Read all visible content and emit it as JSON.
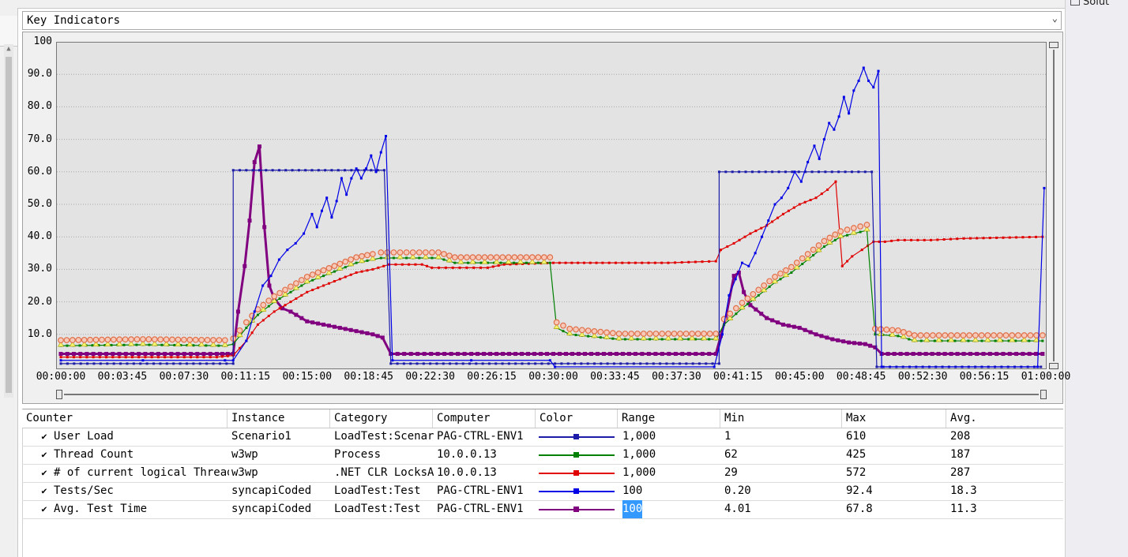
{
  "solution_explorer_label": "Solut",
  "panel_dropdown": {
    "selected": "Key Indicators",
    "arrow": "⌄"
  },
  "chart_data": {
    "type": "line",
    "title": "",
    "xlabel": "",
    "ylabel": "",
    "ylim": [
      0,
      100
    ],
    "xlim": [
      "00:00:00",
      "01:00:00"
    ],
    "grid": true,
    "y_ticks": [
      "100",
      "90.0",
      "80.0",
      "70.0",
      "60.0",
      "50.0",
      "40.0",
      "30.0",
      "20.0",
      "10.0"
    ],
    "x_ticks": [
      "00:00:00",
      "00:03:45",
      "00:07:30",
      "00:11:15",
      "00:15:00",
      "00:18:45",
      "00:22:30",
      "00:26:15",
      "00:30:00",
      "00:33:45",
      "00:37:30",
      "00:41:15",
      "00:45:00",
      "00:48:45",
      "00:52:30",
      "00:56:15",
      "01:00:00"
    ],
    "series": [
      {
        "name": "User Load",
        "color": "#1c1ca8",
        "points": [
          [
            0,
            1
          ],
          [
            10.5,
            1
          ],
          [
            10.5,
            60.5
          ],
          [
            19.7,
            60.5
          ],
          [
            20.1,
            1
          ],
          [
            40.1,
            1
          ],
          [
            40.1,
            60
          ],
          [
            49.4,
            60
          ],
          [
            49.7,
            0
          ],
          [
            59.7,
            0
          ]
        ]
      },
      {
        "name": "Thread Count",
        "color": "#008000",
        "points": [
          [
            0,
            6.5
          ],
          [
            5,
            6.8
          ],
          [
            10,
            6.5
          ],
          [
            10.5,
            7
          ],
          [
            11.3,
            12
          ],
          [
            12,
            16
          ],
          [
            13,
            20
          ],
          [
            14,
            23
          ],
          [
            15,
            26
          ],
          [
            16,
            28
          ],
          [
            17,
            30
          ],
          [
            18,
            32
          ],
          [
            19,
            33
          ],
          [
            19.5,
            33.5
          ],
          [
            23,
            33.5
          ],
          [
            24,
            32
          ],
          [
            28,
            32
          ],
          [
            29.8,
            32
          ],
          [
            30.2,
            12
          ],
          [
            31,
            10
          ],
          [
            34,
            8.5
          ],
          [
            37,
            8.5
          ],
          [
            39.9,
            8.5
          ],
          [
            40.4,
            13
          ],
          [
            41.5,
            18
          ],
          [
            42.5,
            22
          ],
          [
            43.5,
            26
          ],
          [
            44.5,
            29
          ],
          [
            45.5,
            33
          ],
          [
            46.5,
            37
          ],
          [
            47.5,
            40
          ],
          [
            49.1,
            42
          ],
          [
            49.6,
            10
          ],
          [
            51,
            9.5
          ],
          [
            52,
            8
          ],
          [
            59.8,
            8
          ]
        ]
      },
      {
        "name": "# of current logical Threads",
        "color": "#e00000",
        "points": [
          [
            0,
            3
          ],
          [
            9.5,
            3
          ],
          [
            10.5,
            3.5
          ],
          [
            11.3,
            8
          ],
          [
            12,
            13
          ],
          [
            13,
            17
          ],
          [
            14,
            20
          ],
          [
            15,
            23
          ],
          [
            16,
            25
          ],
          [
            17,
            27
          ],
          [
            18,
            29
          ],
          [
            19,
            30
          ],
          [
            20,
            31.5
          ],
          [
            22,
            31.5
          ],
          [
            22.6,
            30.5
          ],
          [
            26,
            30.5
          ],
          [
            27,
            31.5
          ],
          [
            30,
            32
          ],
          [
            33,
            32
          ],
          [
            37,
            32
          ],
          [
            39.9,
            32.5
          ],
          [
            40.2,
            36
          ],
          [
            41,
            38
          ],
          [
            42,
            41
          ],
          [
            43,
            43.5
          ],
          [
            44,
            47
          ],
          [
            45,
            50
          ],
          [
            46,
            52
          ],
          [
            46.7,
            54.5
          ],
          [
            47.2,
            57
          ],
          [
            47.6,
            31
          ],
          [
            48.2,
            34
          ],
          [
            48.8,
            36
          ],
          [
            49.5,
            38.5
          ],
          [
            50.2,
            38.5
          ],
          [
            51,
            39
          ],
          [
            53,
            39
          ],
          [
            55,
            39.5
          ],
          [
            59.8,
            40
          ]
        ]
      },
      {
        "name": "Tests/Sec",
        "color": "#0000e6",
        "points": [
          [
            0,
            2
          ],
          [
            5,
            2
          ],
          [
            10,
            2
          ],
          [
            10.5,
            2
          ],
          [
            11.3,
            8
          ],
          [
            11.8,
            17
          ],
          [
            12.3,
            25
          ],
          [
            12.8,
            28
          ],
          [
            13.3,
            33
          ],
          [
            13.8,
            36
          ],
          [
            14.3,
            38
          ],
          [
            14.8,
            41
          ],
          [
            15.3,
            47
          ],
          [
            15.6,
            43
          ],
          [
            15.9,
            48
          ],
          [
            16.2,
            52
          ],
          [
            16.5,
            46
          ],
          [
            16.8,
            51
          ],
          [
            17.1,
            58
          ],
          [
            17.4,
            53
          ],
          [
            17.7,
            58
          ],
          [
            18.0,
            61
          ],
          [
            18.3,
            58
          ],
          [
            18.6,
            61
          ],
          [
            18.9,
            65
          ],
          [
            19.2,
            60
          ],
          [
            19.5,
            66
          ],
          [
            19.8,
            71
          ],
          [
            20.2,
            2
          ],
          [
            25,
            2
          ],
          [
            29.8,
            2
          ],
          [
            30.1,
            0
          ],
          [
            39.8,
            0
          ],
          [
            40.3,
            10
          ],
          [
            40.7,
            22
          ],
          [
            41.1,
            27
          ],
          [
            41.5,
            32
          ],
          [
            41.9,
            31
          ],
          [
            42.3,
            35
          ],
          [
            42.7,
            40
          ],
          [
            43.1,
            45
          ],
          [
            43.5,
            50
          ],
          [
            43.9,
            52
          ],
          [
            44.3,
            55
          ],
          [
            44.7,
            60
          ],
          [
            45.1,
            57
          ],
          [
            45.5,
            63
          ],
          [
            45.9,
            68
          ],
          [
            46.2,
            64
          ],
          [
            46.5,
            70
          ],
          [
            46.8,
            75
          ],
          [
            47.1,
            73
          ],
          [
            47.4,
            77
          ],
          [
            47.7,
            83
          ],
          [
            48.0,
            78
          ],
          [
            48.3,
            85
          ],
          [
            48.6,
            88
          ],
          [
            48.9,
            92
          ],
          [
            49.2,
            88
          ],
          [
            49.5,
            86
          ],
          [
            49.8,
            91
          ],
          [
            50.0,
            0
          ],
          [
            59.5,
            0
          ],
          [
            59.9,
            55
          ]
        ]
      },
      {
        "name": "Avg. Test Time",
        "color": "#800080",
        "points": [
          [
            0,
            4
          ],
          [
            9.5,
            4
          ],
          [
            10.5,
            4
          ],
          [
            10.8,
            17
          ],
          [
            11.2,
            31
          ],
          [
            11.5,
            45
          ],
          [
            11.8,
            63
          ],
          [
            12.1,
            67.8
          ],
          [
            12.4,
            43
          ],
          [
            12.7,
            25
          ],
          [
            13.0,
            21
          ],
          [
            13.5,
            18
          ],
          [
            14,
            17
          ],
          [
            15,
            14
          ],
          [
            16,
            13
          ],
          [
            17,
            12
          ],
          [
            18,
            11
          ],
          [
            19,
            10
          ],
          [
            19.6,
            9
          ],
          [
            20.1,
            4
          ],
          [
            25,
            4
          ],
          [
            30,
            4
          ],
          [
            35,
            4
          ],
          [
            39.9,
            4
          ],
          [
            40.5,
            15
          ],
          [
            41,
            28
          ],
          [
            41.3,
            29
          ],
          [
            41.6,
            23
          ],
          [
            42,
            19
          ],
          [
            43,
            15
          ],
          [
            44,
            13
          ],
          [
            45,
            12
          ],
          [
            46,
            10
          ],
          [
            47,
            8.5
          ],
          [
            48,
            7.5
          ],
          [
            49,
            7
          ],
          [
            49.6,
            6
          ],
          [
            50,
            4
          ],
          [
            55,
            4
          ],
          [
            59.8,
            4
          ]
        ]
      }
    ]
  },
  "table": {
    "headers": [
      "Counter",
      "Instance",
      "Category",
      "Computer",
      "Color",
      "Range",
      "Min",
      "Max",
      "Avg."
    ],
    "rows": [
      {
        "checked": "✔",
        "counter": "User Load",
        "instance": "Scenario1",
        "category": "LoadTest:Scenario",
        "computer": "PAG-CTRL-ENV1",
        "color": "#1c1ca8",
        "range": "1,000",
        "min": "1",
        "max": "610",
        "avg": "208"
      },
      {
        "checked": "✔",
        "counter": "Thread Count",
        "instance": "w3wp",
        "category": "Process",
        "computer": "10.0.0.13",
        "color": "#008000",
        "range": "1,000",
        "min": "62",
        "max": "425",
        "avg": "187"
      },
      {
        "checked": "✔",
        "counter": "# of current logical Threads",
        "instance": "w3wp",
        "category": ".NET CLR LocksAndThreads",
        "computer": "10.0.0.13",
        "color": "#e00000",
        "range": "1,000",
        "min": "29",
        "max": "572",
        "avg": "287"
      },
      {
        "checked": "✔",
        "counter": "Tests/Sec",
        "instance": "syncapiCoded",
        "category": "LoadTest:Test",
        "computer": "PAG-CTRL-ENV1",
        "color": "#0000e6",
        "range": "100",
        "min": "0.20",
        "max": "92.4",
        "avg": "18.3"
      },
      {
        "checked": "✔",
        "counter": "Avg. Test Time",
        "instance": "syncapiCoded",
        "category": "LoadTest:Test",
        "computer": "PAG-CTRL-ENV1",
        "color": "#800080",
        "range": "100",
        "min": "4.01",
        "max": "67.8",
        "avg": "11.3"
      }
    ]
  }
}
